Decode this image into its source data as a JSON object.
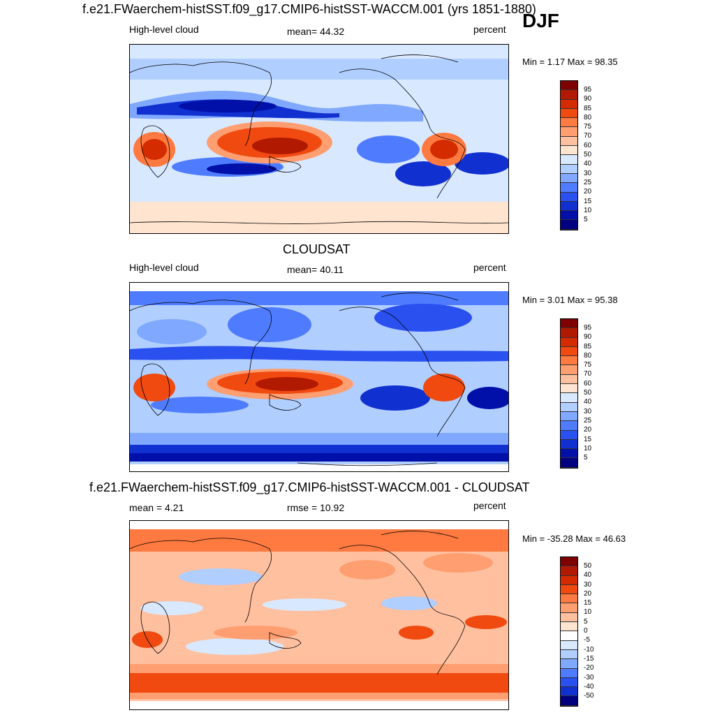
{
  "season": "DJF",
  "panels": [
    {
      "title": "f.e21.FWaerchem-histSST.f09_g17.CMIP6-histSST-WACCM.001 (yrs 1851-1880)",
      "left_label": "High-level cloud",
      "center_label": "mean=  44.32",
      "units": "percent",
      "minmax": "Min =   1.17 Max =  98.35",
      "colorbar_labels": [
        "95",
        "90",
        "85",
        "80",
        "75",
        "70",
        "60",
        "50",
        "40",
        "30",
        "25",
        "20",
        "15",
        "10",
        "5"
      ]
    },
    {
      "title": "CLOUDSAT",
      "left_label": "High-level cloud",
      "center_label": "mean=  40.11",
      "units": "percent",
      "minmax": "Min =   3.01 Max =  95.38",
      "colorbar_labels": [
        "95",
        "90",
        "85",
        "80",
        "75",
        "70",
        "60",
        "50",
        "40",
        "30",
        "25",
        "20",
        "15",
        "10",
        "5"
      ]
    },
    {
      "title": "f.e21.FWaerchem-histSST.f09_g17.CMIP6-histSST-WACCM.001 - CLOUDSAT",
      "left_label": "mean =   4.21",
      "center_label": "rmse =  10.92",
      "units": "percent",
      "minmax": "Min = -35.28 Max =  46.63",
      "colorbar_labels": [
        "50",
        "40",
        "30",
        "20",
        "15",
        "10",
        "5",
        "0",
        "-5",
        "-10",
        "-15",
        "-20",
        "-30",
        "-40",
        "-50"
      ]
    }
  ],
  "colors": {
    "abs_scale": [
      "#7f0000",
      "#b21a00",
      "#d42c00",
      "#f04a10",
      "#ff7a40",
      "#ff9e70",
      "#ffc0a0",
      "#ffe4d0",
      "#d8e8ff",
      "#b0ceff",
      "#80a8ff",
      "#4f7cff",
      "#2a50f0",
      "#1030d0",
      "#0010a8",
      "#000080"
    ],
    "diff_scale": [
      "#7f0000",
      "#b21a00",
      "#d42c00",
      "#f04a10",
      "#ff7a40",
      "#ff9e70",
      "#ffc0a0",
      "#ffe4d0",
      "#ffffff",
      "#d8e8ff",
      "#b0ceff",
      "#80a8ff",
      "#4f7cff",
      "#2a50f0",
      "#1030d0",
      "#000080"
    ]
  }
}
